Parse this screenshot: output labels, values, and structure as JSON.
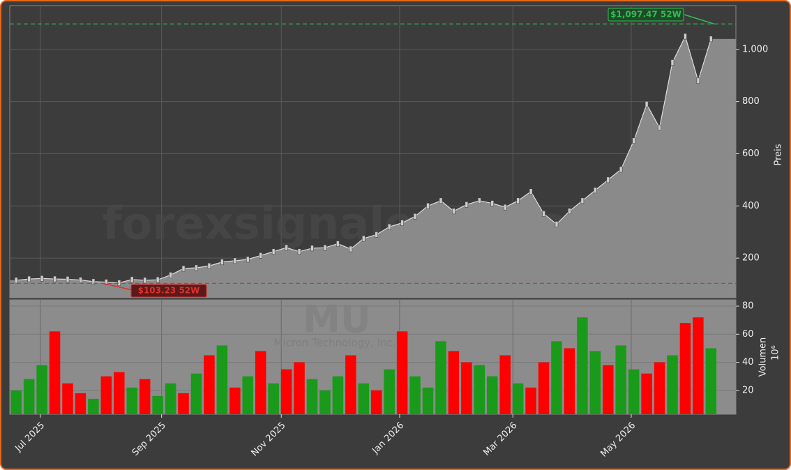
{
  "chart_data": {
    "type": "stock",
    "watermark": "forexsignale.trade",
    "symbol": "MU",
    "company": "Micron Technology, Inc.",
    "categories": [
      null,
      null,
      null,
      null,
      null,
      null,
      null,
      null,
      null,
      null,
      null,
      null,
      null,
      null,
      null,
      null,
      null,
      null,
      null,
      null,
      null,
      null,
      null,
      null,
      null,
      null,
      null,
      null,
      null,
      null,
      null,
      null,
      null,
      null,
      null,
      null,
      null,
      null,
      null,
      null,
      null,
      null,
      null,
      null,
      null,
      null,
      null,
      null,
      null,
      null,
      null,
      null,
      null,
      null,
      null
    ],
    "xticks": [
      {
        "value": 1.88,
        "label": "Jul 2025"
      },
      {
        "value": 11.3,
        "label": "Sep 2025"
      },
      {
        "value": 20.6,
        "label": "Nov 2025"
      },
      {
        "value": 29.8,
        "label": "Jan 2026"
      },
      {
        "value": 38.6,
        "label": "Mar 2026"
      },
      {
        "value": 47.8,
        "label": "May 2026"
      }
    ],
    "price": {
      "label": "Preis",
      "color": "#8a8a8a",
      "values": [
        115,
        120,
        122,
        120,
        119,
        116,
        110,
        108,
        105,
        118,
        115,
        117,
        135,
        160,
        163,
        170,
        185,
        190,
        195,
        210,
        225,
        240,
        225,
        238,
        240,
        255,
        235,
        275,
        290,
        320,
        335,
        360,
        400,
        420,
        380,
        405,
        420,
        410,
        395,
        420,
        455,
        370,
        330,
        380,
        420,
        460,
        500,
        540,
        650,
        790,
        700,
        950,
        1050,
        880,
        1040
      ],
      "ylim": [
        48,
        1168
      ],
      "yticks": [
        200,
        400,
        600,
        800,
        {
          "value": 1000,
          "label": "1.000"
        }
      ],
      "high": {
        "value": 1097.47,
        "label": "$1,097.47 52W",
        "color": "#2fbf4f"
      },
      "low": {
        "value": 103.23,
        "label": "$103.23 52W",
        "color": "#e03030"
      }
    },
    "volume": {
      "label": "Volumen",
      "unit": "10⁶",
      "values": [
        20,
        28,
        38,
        62,
        25,
        18,
        14,
        30,
        33,
        22,
        28,
        16,
        25,
        18,
        32,
        45,
        52,
        22,
        30,
        48,
        25,
        35,
        40,
        28,
        20,
        30,
        45,
        25,
        20,
        35,
        62,
        30,
        22,
        55,
        48,
        40,
        38,
        30,
        45,
        25,
        22,
        40,
        55,
        50,
        72,
        48,
        38,
        52,
        35,
        32,
        40,
        45,
        68,
        72,
        50
      ],
      "colors": [
        "#1a9a1a",
        "#1a9a1a",
        "#1a9a1a",
        "#ff0000",
        "#ff0000",
        "#ff0000",
        "#1a9a1a",
        "#ff0000",
        "#ff0000",
        "#1a9a1a",
        "#ff0000",
        "#1a9a1a",
        "#1a9a1a",
        "#ff0000",
        "#1a9a1a",
        "#ff0000",
        "#1a9a1a",
        "#ff0000",
        "#1a9a1a",
        "#ff0000",
        "#1a9a1a",
        "#ff0000",
        "#ff0000",
        "#1a9a1a",
        "#1a9a1a",
        "#1a9a1a",
        "#ff0000",
        "#1a9a1a",
        "#ff0000",
        "#1a9a1a",
        "#ff0000",
        "#1a9a1a",
        "#1a9a1a",
        "#1a9a1a",
        "#ff0000",
        "#ff0000",
        "#1a9a1a",
        "#1a9a1a",
        "#ff0000",
        "#1a9a1a",
        "#ff0000",
        "#ff0000",
        "#1a9a1a",
        "#ff0000",
        "#1a9a1a",
        "#1a9a1a",
        "#ff0000",
        "#1a9a1a",
        "#1a9a1a",
        "#ff0000",
        "#ff0000",
        "#1a9a1a",
        "#ff0000",
        "#ff0000",
        "#1a9a1a"
      ],
      "ylim": [
        3,
        84.5
      ],
      "yticks": [
        20,
        40,
        60,
        80
      ]
    },
    "grid": true
  }
}
